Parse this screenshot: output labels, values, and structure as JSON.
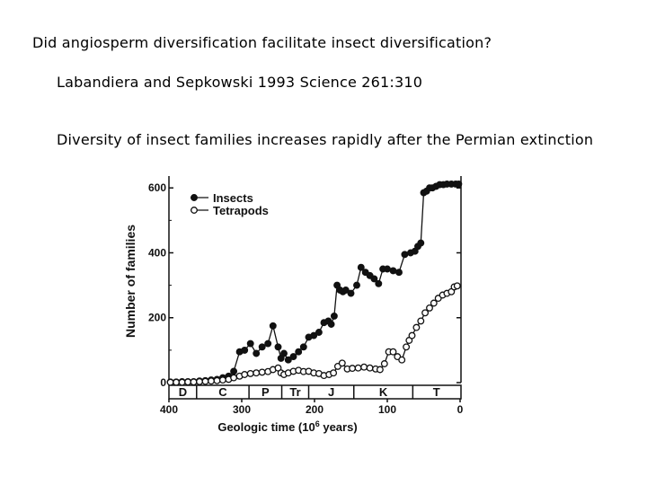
{
  "slide": {
    "title": "Did angiosperm diversification facilitate insect diversification?",
    "citation": "Labandiera and Sepkowski 1993 Science 261:310",
    "summary": "Diversity of insect families increases rapidly after the Permian extinction"
  },
  "chart_data": {
    "type": "line",
    "title": "",
    "xlabel": "Geologic time (10",
    "xlabel_sup": "6",
    "xlabel_suffix": " years)",
    "ylabel": "Number of families",
    "xlim": [
      400,
      0
    ],
    "ylim": [
      0,
      620
    ],
    "x_ticks": [
      400,
      300,
      200,
      100,
      0
    ],
    "y_ticks": [
      0,
      200,
      400,
      600
    ],
    "grid": false,
    "legend": "top-left",
    "periods": [
      {
        "label": "D",
        "start": 408,
        "end": 362
      },
      {
        "label": "C",
        "start": 362,
        "end": 290
      },
      {
        "label": "P",
        "start": 290,
        "end": 245
      },
      {
        "label": "Tr",
        "start": 245,
        "end": 208
      },
      {
        "label": "J",
        "start": 208,
        "end": 146
      },
      {
        "label": "K",
        "start": 146,
        "end": 65
      },
      {
        "label": "T",
        "start": 65,
        "end": 0
      }
    ],
    "series": [
      {
        "name": "Insects",
        "marker": "filled",
        "x": [
          398,
          390,
          382,
          374,
          366,
          358,
          350,
          342,
          334,
          326,
          318,
          311,
          303,
          296,
          288,
          280,
          272,
          264,
          257,
          250,
          246,
          242,
          236,
          229,
          222,
          215,
          208,
          201,
          194,
          187,
          181,
          177,
          173,
          169,
          165,
          161,
          157,
          150,
          142,
          136,
          130,
          124,
          118,
          112,
          106,
          100,
          92,
          84,
          76,
          68,
          62,
          58,
          54,
          50,
          46,
          42,
          38,
          33,
          28,
          23,
          18,
          12,
          6,
          2
        ],
        "y": [
          2,
          2,
          3,
          3,
          3,
          5,
          6,
          8,
          10,
          15,
          20,
          35,
          95,
          100,
          120,
          90,
          110,
          120,
          175,
          110,
          75,
          90,
          70,
          80,
          95,
          110,
          140,
          145,
          155,
          185,
          190,
          180,
          205,
          300,
          285,
          280,
          285,
          275,
          300,
          355,
          340,
          330,
          320,
          305,
          350,
          350,
          345,
          340,
          395,
          400,
          405,
          420,
          430,
          585,
          590,
          600,
          600,
          605,
          610,
          610,
          612,
          612,
          612,
          612
        ]
      },
      {
        "name": "Tetrapods",
        "marker": "open",
        "x": [
          398,
          390,
          382,
          374,
          366,
          358,
          350,
          342,
          334,
          326,
          318,
          311,
          303,
          296,
          288,
          280,
          272,
          264,
          257,
          250,
          246,
          242,
          236,
          229,
          222,
          215,
          208,
          201,
          194,
          187,
          180,
          174,
          168,
          162,
          155,
          148,
          140,
          132,
          124,
          116,
          110,
          104,
          98,
          92,
          86,
          80,
          74,
          70,
          66,
          60,
          54,
          48,
          42,
          36,
          30,
          24,
          18,
          12,
          8,
          4
        ],
        "y": [
          1,
          1,
          1,
          2,
          2,
          3,
          4,
          5,
          6,
          8,
          10,
          15,
          20,
          25,
          28,
          30,
          32,
          34,
          40,
          45,
          30,
          25,
          30,
          35,
          38,
          34,
          35,
          30,
          28,
          22,
          25,
          30,
          50,
          60,
          42,
          44,
          45,
          48,
          45,
          42,
          40,
          58,
          95,
          95,
          80,
          70,
          110,
          130,
          145,
          170,
          190,
          215,
          230,
          245,
          260,
          270,
          275,
          280,
          295,
          298
        ]
      }
    ]
  }
}
